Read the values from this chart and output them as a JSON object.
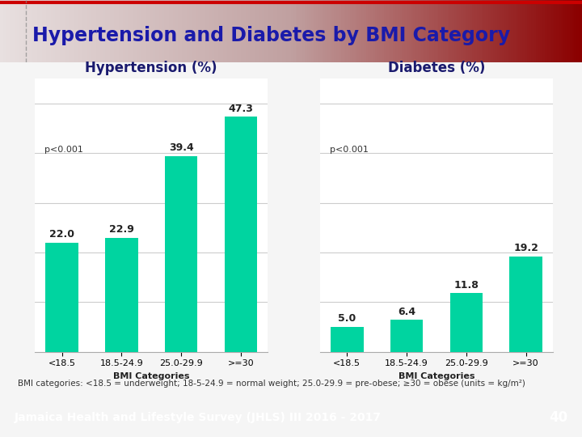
{
  "title": "Hypertension and Diabetes by BMI Category",
  "title_text_color": "#1a1aaa",
  "title_fontsize": 17,
  "categories": [
    "<18.5",
    "18.5-24.9",
    "25.0-29.9",
    ">=30"
  ],
  "xlabel": "BMI Categories",
  "hypertension_values": [
    22.0,
    22.9,
    39.4,
    47.3
  ],
  "diabetes_values": [
    5.0,
    6.4,
    11.8,
    19.2
  ],
  "bar_color": "#00d4a0",
  "hypertension_title": "Hypertension (%)",
  "diabetes_title": "Diabetes (%)",
  "chart_title_color": "#1a1a6e",
  "chart_title_fontsize": 12,
  "p_value_text": "p<0.001",
  "p_fontsize": 8,
  "footnote": "BMI categories: <18.5 = underweight; 18-5-24.9 = normal weight; 25.0-29.9 = pre-obese; ≥30 = obese (units = kg/m²)",
  "footnote_fontsize": 7.5,
  "footer_text": "Jamaica Health and Lifestyle Survey (JHLS) III 2016 - 2017",
  "footer_page": "40",
  "footer_bg": "#2080c0",
  "footer_fg": "#ffffff",
  "footer_fontsize": 10,
  "bg_color": "#f5f5f5",
  "plot_bg_color": "#ffffff",
  "tick_fontsize": 8,
  "value_fontsize": 9,
  "grid_color": "#cccccc",
  "spine_color": "#aaaaaa",
  "ylim": [
    0,
    55
  ],
  "yticks": [
    10,
    20,
    30,
    40,
    50
  ]
}
